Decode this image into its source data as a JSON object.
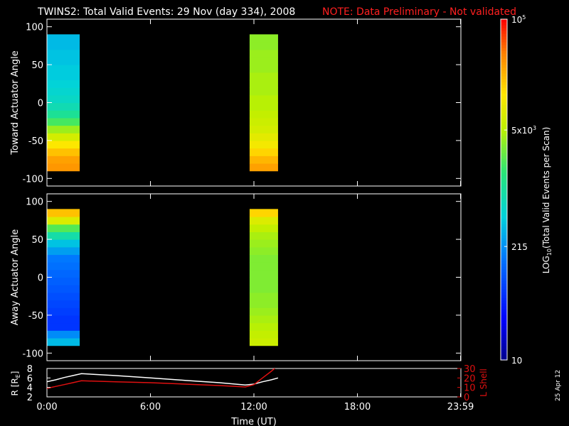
{
  "title": "TWINS2: Total Valid Events: 29 Nov (day 334), 2008",
  "note": "NOTE: Data Preliminary - Not validated",
  "date_stamp": "25 Apr 12",
  "colors": {
    "background": "#000000",
    "axis": "#ffffff",
    "note": "#ff2020",
    "lshell": "#e01010",
    "radius": "#ffffff"
  },
  "chart_data": [
    {
      "type": "heatmap",
      "name": "toward-panel",
      "ylabel": "Toward Actuator Angle",
      "ylim": [
        -110,
        110
      ],
      "yticks": [
        -100,
        -50,
        0,
        50,
        100
      ],
      "xlim": [
        0,
        24
      ],
      "rows_y": [
        -85,
        -75,
        -65,
        -55,
        -45,
        -35,
        -25,
        -15,
        -5,
        5,
        15,
        25,
        35,
        45,
        55,
        65,
        75,
        85
      ],
      "blocks": [
        {
          "t_start": 0.0,
          "t_end": 1.9,
          "log_values": [
            4.5,
            4.45,
            4.3,
            4.1,
            3.85,
            3.6,
            3.3,
            3.05,
            2.9,
            2.8,
            2.75,
            2.7,
            2.65,
            2.65,
            2.6,
            2.6,
            2.55,
            2.55
          ]
        },
        {
          "t_start": 11.75,
          "t_end": 13.4,
          "log_values": [
            4.45,
            4.35,
            4.2,
            4.05,
            3.95,
            3.85,
            3.8,
            3.75,
            3.7,
            3.7,
            3.65,
            3.65,
            3.65,
            3.6,
            3.6,
            3.6,
            3.55,
            3.55
          ]
        }
      ]
    },
    {
      "type": "heatmap",
      "name": "away-panel",
      "ylabel": "Away Actuator Angle",
      "ylim": [
        -110,
        110
      ],
      "yticks": [
        -100,
        -50,
        0,
        50,
        100
      ],
      "xlim": [
        0,
        24
      ],
      "rows_y": [
        -85,
        -75,
        -65,
        -55,
        -45,
        -35,
        -25,
        -15,
        -5,
        5,
        15,
        25,
        35,
        45,
        55,
        65,
        75,
        85
      ],
      "blocks": [
        {
          "t_start": 0.0,
          "t_end": 1.9,
          "log_values": [
            2.55,
            2.3,
            1.8,
            1.8,
            1.85,
            1.9,
            1.95,
            2.0,
            2.05,
            2.1,
            2.15,
            2.2,
            2.4,
            2.6,
            2.95,
            3.35,
            3.9,
            4.3
          ]
        },
        {
          "t_start": 11.75,
          "t_end": 13.4,
          "log_values": [
            3.8,
            3.75,
            3.7,
            3.65,
            3.6,
            3.55,
            3.55,
            3.5,
            3.5,
            3.5,
            3.5,
            3.5,
            3.55,
            3.6,
            3.65,
            3.75,
            3.9,
            4.2
          ]
        }
      ]
    },
    {
      "type": "line",
      "name": "orbit-panel",
      "ylabel": "R [R",
      "ylabel_sub": "E",
      "ylabel_close": "]",
      "ylim": [
        2,
        8
      ],
      "yticks": [
        2,
        4,
        6,
        8
      ],
      "y2label": "L Shell",
      "y2lim": [
        0,
        30
      ],
      "y2ticks": [
        0,
        10,
        20,
        30
      ],
      "xlabel": "Time (UT)",
      "xlim": [
        0,
        24
      ],
      "xticks": [
        0,
        6,
        12,
        18,
        23.98
      ],
      "xticklabels": [
        "0:00",
        "6:00",
        "12:00",
        "18:00",
        "23:59"
      ],
      "series": [
        {
          "axis": "left",
          "color": "#ffffff",
          "x": [
            0.0,
            0.5,
            1.0,
            1.5,
            2.0,
            4.0,
            6.0,
            8.0,
            10.0,
            11.5,
            12.0,
            12.5,
            13.0,
            13.4
          ],
          "y": [
            5.2,
            5.6,
            6.1,
            6.5,
            6.9,
            6.5,
            6.0,
            5.5,
            5.0,
            4.5,
            4.7,
            5.2,
            5.6,
            6.0
          ]
        },
        {
          "axis": "right",
          "color": "#e01010",
          "x": [
            0.0,
            0.5,
            1.0,
            1.5,
            2.0,
            4.0,
            6.0,
            8.0,
            10.0,
            11.5,
            12.0,
            12.5,
            13.0,
            13.4
          ],
          "y": [
            9.0,
            11.0,
            13.0,
            15.0,
            17.0,
            16.0,
            15.0,
            13.5,
            12.0,
            10.5,
            13.0,
            20.0,
            27.0,
            33.0
          ]
        }
      ]
    },
    {
      "type": "colorbar",
      "name": "event-colorbar",
      "label": "LOG",
      "label_sub": "10",
      "label_rest": "(Total Valid Events per Scan)",
      "range_log": [
        1.0,
        5.0
      ],
      "ticks": [
        {
          "log": 5.0,
          "base": "10",
          "sup": "5"
        },
        {
          "log": 3.699,
          "base": "5x10",
          "sup": "3"
        },
        {
          "log": 2.332,
          "base": "215",
          "sup": ""
        },
        {
          "log": 1.0,
          "base": "10",
          "sup": ""
        }
      ]
    }
  ]
}
